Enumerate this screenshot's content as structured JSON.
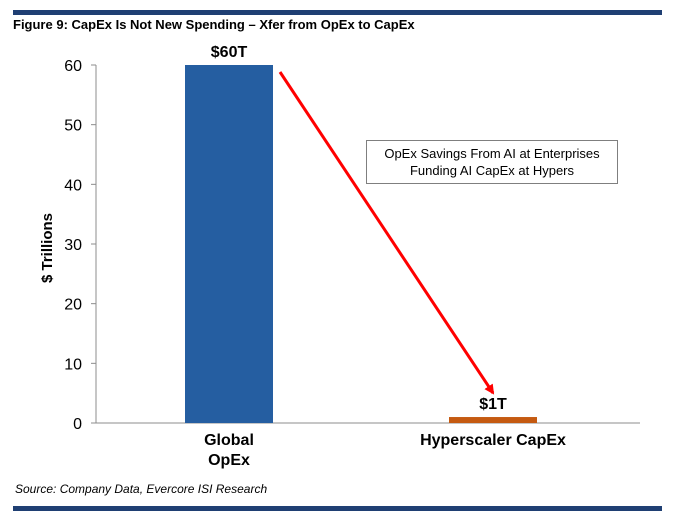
{
  "figure": {
    "title": "Figure 9: CapEx Is Not New Spending – Xfer from OpEx to CapEx",
    "source": "Source: Company Data, Evercore ISI Research"
  },
  "colors": {
    "rule": "#1f3f73",
    "bar_opex": "#255ea1",
    "bar_capex": "#c55a11",
    "arrow": "#ff0000"
  },
  "annotation": {
    "line1": "OpEx Savings From AI at Enterprises",
    "line2": "Funding AI CapEx at Hypers"
  },
  "chart_data": {
    "type": "bar",
    "title": "",
    "xlabel": "",
    "ylabel": "$ Trillions",
    "ylim": [
      0,
      60
    ],
    "yticks": [
      0,
      10,
      20,
      30,
      40,
      50,
      60
    ],
    "grid": false,
    "categories": [
      [
        "Global",
        "OpEx"
      ],
      [
        "Hyperscaler CapEx"
      ]
    ],
    "values": [
      60,
      1
    ],
    "data_labels": [
      "$60T",
      "$1T"
    ],
    "bar_colors": [
      "#255ea1",
      "#c55a11"
    ]
  }
}
